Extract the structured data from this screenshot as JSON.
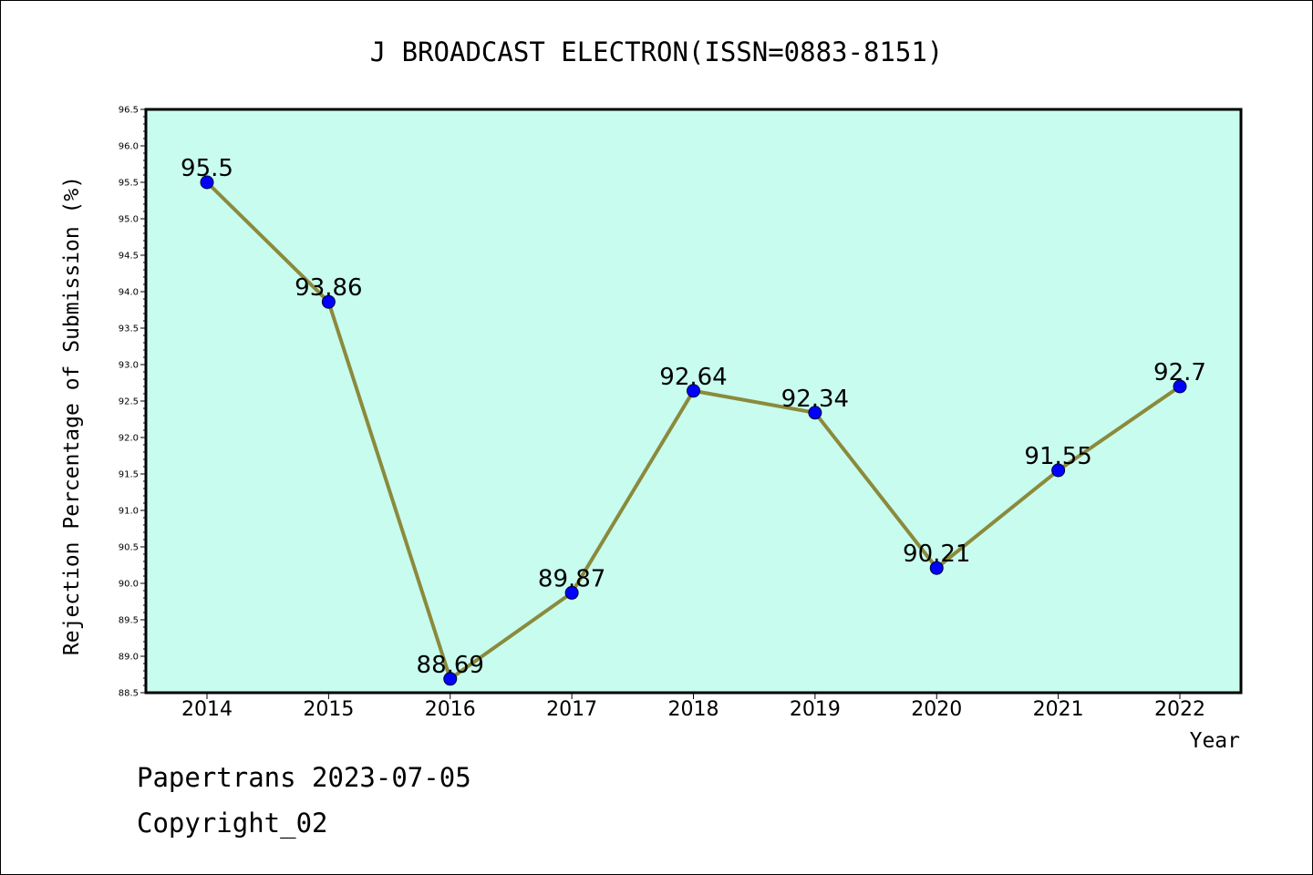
{
  "chart_data": {
    "type": "line",
    "title": "J BROADCAST ELECTRON(ISSN=0883-8151)",
    "xlabel": "Year",
    "ylabel": "Rejection Percentage of Submission (%)",
    "categories": [
      "2014",
      "2015",
      "2016",
      "2017",
      "2018",
      "2019",
      "2020",
      "2021",
      "2022"
    ],
    "series": [
      {
        "values": [
          95.5,
          93.86,
          88.69,
          89.87,
          92.64,
          92.34,
          90.21,
          91.55,
          92.7
        ]
      }
    ],
    "data_labels": [
      "95.5",
      "93.86",
      "88.69",
      "89.87",
      "92.64",
      "92.34",
      "90.21",
      "91.55",
      "92.7"
    ],
    "ylim": [
      88.5,
      96.5
    ],
    "yticks": [
      "88.5",
      "89.0",
      "89.5",
      "90.0",
      "90.5",
      "91.0",
      "91.5",
      "92.0",
      "92.5",
      "93.0",
      "93.5",
      "94.0",
      "94.5",
      "95.0",
      "95.5",
      "96.0",
      "96.5"
    ],
    "grid": false,
    "colors": {
      "plot_background": "#c8fcef",
      "line": "#8b8a3c",
      "marker": "#0000ff"
    }
  },
  "footer": {
    "line1": "Papertrans 2023-07-05",
    "line2": "Copyright_02"
  }
}
